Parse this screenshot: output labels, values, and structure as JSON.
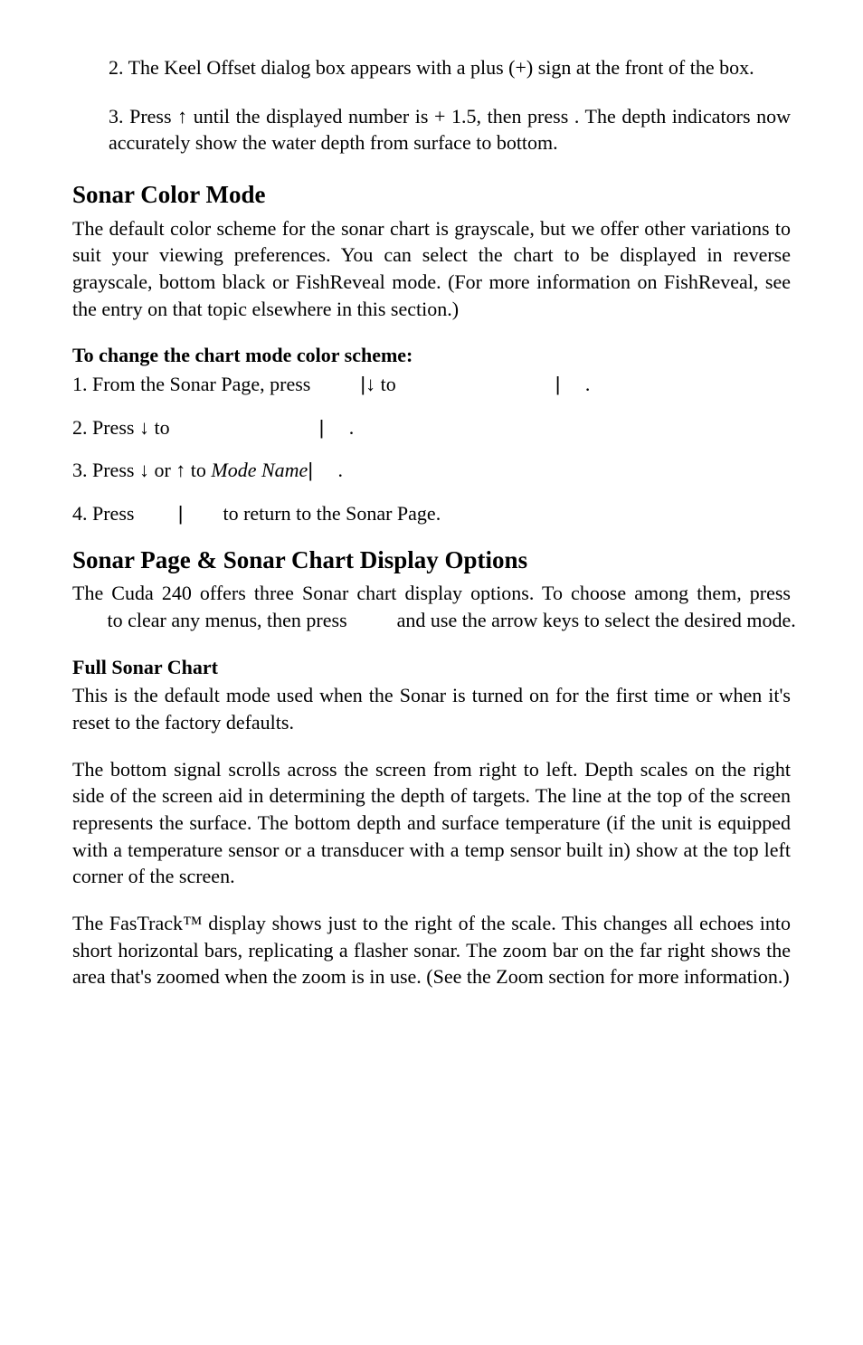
{
  "intro": {
    "p1": "2. The Keel Offset dialog box appears with a plus (+) sign at the front of the box.",
    "p2_a": "3. Press ",
    "p2_arrow": "↑",
    "p2_b": " until the displayed number is + 1.5, then press ",
    "p2_c": "      . The depth indicators now accurately show the water depth from surface to bottom."
  },
  "sonar_color": {
    "heading": "Sonar Color Mode",
    "intro": "The default color scheme for the sonar chart is grayscale, but we offer other variations to suit your viewing preferences. You can select the chart to be displayed in reverse grayscale, bottom black or FishReveal mode. (For more information on FishReveal, see the entry on that topic elsewhere in this section.)",
    "change_heading": "To change the chart mode color scheme:",
    "step1_a": "1. From the Sonar Page, press ",
    "step1_b": "|",
    "step1_c": "↓",
    "step1_d": " to ",
    "step1_gap": "                               ",
    "step1_e": "|",
    "step1_f": "     .",
    "step2_a": "2. Press ",
    "step2_arrow": "↓",
    "step2_b": " to ",
    "step2_gap": "                             ",
    "step2_c": "|",
    "step2_d": "     .",
    "step3_a": "3. Press ",
    "step3_arrow1": "↓",
    "step3_mid": " or ",
    "step3_arrow2": "↑",
    "step3_b": " to ",
    "step3_mode": "Mode Name",
    "step3_c": "|",
    "step3_d": "     .",
    "step4_a": "4. Press ",
    "step4_b": "       |",
    "step4_c": "        to return to the Sonar Page."
  },
  "sonar_page": {
    "heading": "Sonar Page & Sonar Chart Display Options",
    "intro_a": "The Cuda 240 offers three Sonar chart display options. To choose among them, press ",
    "intro_b": "       to clear any menus, then press ",
    "intro_c": "         and use the arrow keys to select the desired mode.",
    "full_heading": "Full Sonar Chart",
    "full_p1": "This is the default mode used when the Sonar is turned on for the first time or when it's reset to the factory defaults.",
    "full_p2": "The bottom signal scrolls across the screen from right to left. Depth scales on the right side of the screen aid in determining the depth of targets. The line at the top of the screen represents the surface. The bottom depth and surface temperature (if the unit is equipped with a temperature sensor or a transducer with a temp sensor built in) show at the top left corner of the screen.",
    "full_p3": "The FasTrack™ display shows just to the right of the scale. This changes all echoes into short horizontal bars, replicating a flasher sonar. The zoom bar on the far right shows the area that's zoomed when the zoom is in use. (See the Zoom section for more information.)"
  }
}
